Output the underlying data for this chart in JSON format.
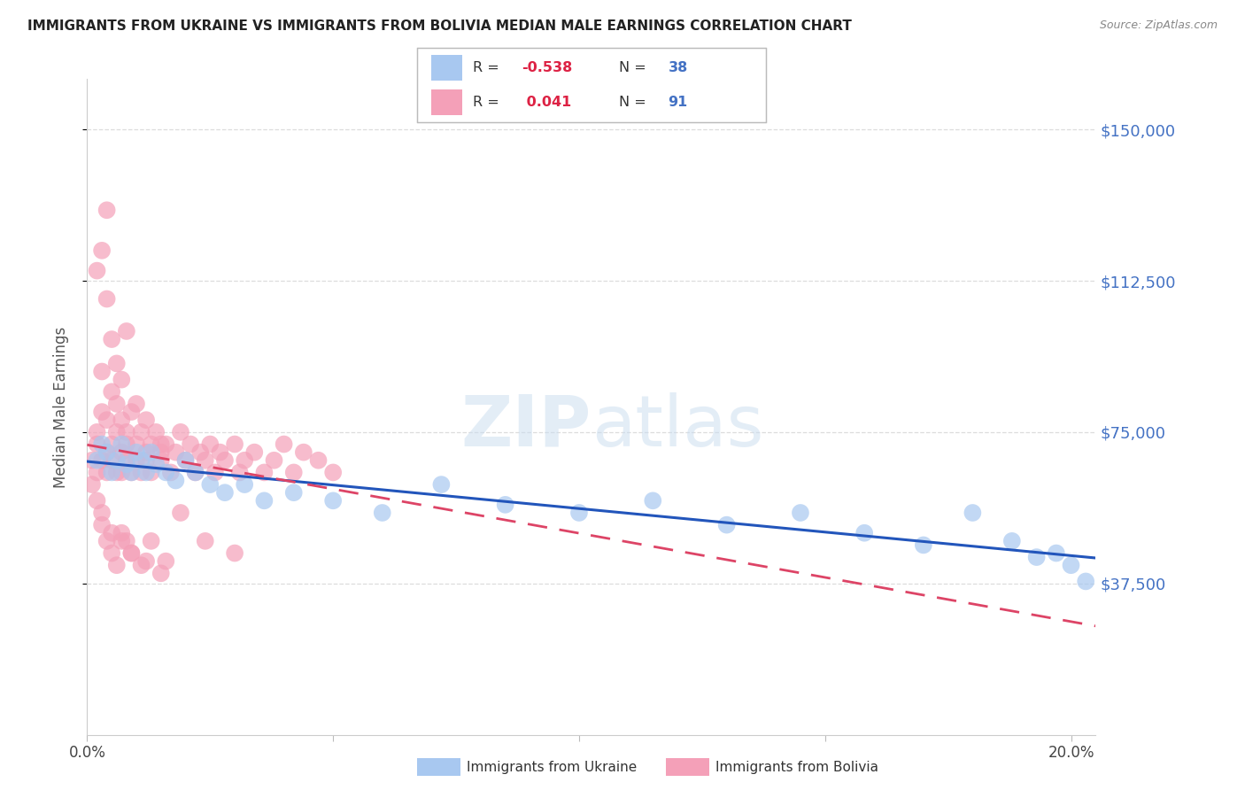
{
  "title": "IMMIGRANTS FROM UKRAINE VS IMMIGRANTS FROM BOLIVIA MEDIAN MALE EARNINGS CORRELATION CHART",
  "source": "Source: ZipAtlas.com",
  "ylabel": "Median Male Earnings",
  "ytick_labels": [
    "$150,000",
    "$112,500",
    "$75,000",
    "$37,500"
  ],
  "ytick_values": [
    150000,
    112500,
    75000,
    37500
  ],
  "ylim": [
    0,
    162500
  ],
  "xlim": [
    0.0,
    0.205
  ],
  "ukraine_R": -0.538,
  "ukraine_N": 38,
  "bolivia_R": 0.041,
  "bolivia_N": 91,
  "ukraine_color": "#A8C8F0",
  "bolivia_color": "#F4A0B8",
  "ukraine_line_color": "#2255BB",
  "bolivia_line_color": "#DD4466",
  "background_color": "#FFFFFF",
  "grid_color": "#DDDDDD",
  "title_color": "#222222",
  "axis_label_color": "#555555",
  "right_tick_color": "#4472C4",
  "ukraine_x": [
    0.002,
    0.003,
    0.004,
    0.005,
    0.006,
    0.007,
    0.008,
    0.009,
    0.01,
    0.011,
    0.012,
    0.013,
    0.014,
    0.016,
    0.018,
    0.02,
    0.022,
    0.025,
    0.028,
    0.032,
    0.036,
    0.042,
    0.05,
    0.06,
    0.072,
    0.085,
    0.1,
    0.115,
    0.13,
    0.145,
    0.158,
    0.17,
    0.18,
    0.188,
    0.193,
    0.197,
    0.2,
    0.203
  ],
  "ukraine_y": [
    68000,
    72000,
    70000,
    65000,
    68000,
    72000,
    67000,
    65000,
    70000,
    68000,
    65000,
    70000,
    67000,
    65000,
    63000,
    68000,
    65000,
    62000,
    60000,
    62000,
    58000,
    60000,
    58000,
    55000,
    62000,
    57000,
    55000,
    58000,
    52000,
    55000,
    50000,
    47000,
    55000,
    48000,
    44000,
    45000,
    42000,
    38000
  ],
  "bolivia_x": [
    0.001,
    0.001,
    0.002,
    0.002,
    0.002,
    0.003,
    0.003,
    0.003,
    0.004,
    0.004,
    0.004,
    0.005,
    0.005,
    0.005,
    0.006,
    0.006,
    0.006,
    0.007,
    0.007,
    0.007,
    0.008,
    0.008,
    0.008,
    0.009,
    0.009,
    0.01,
    0.01,
    0.011,
    0.011,
    0.012,
    0.012,
    0.013,
    0.013,
    0.014,
    0.015,
    0.015,
    0.016,
    0.017,
    0.018,
    0.019,
    0.02,
    0.021,
    0.022,
    0.023,
    0.024,
    0.025,
    0.026,
    0.027,
    0.028,
    0.03,
    0.031,
    0.032,
    0.034,
    0.036,
    0.038,
    0.04,
    0.042,
    0.044,
    0.047,
    0.05,
    0.002,
    0.003,
    0.004,
    0.005,
    0.006,
    0.007,
    0.008,
    0.01,
    0.012,
    0.015,
    0.003,
    0.004,
    0.005,
    0.006,
    0.007,
    0.008,
    0.009,
    0.011,
    0.013,
    0.016,
    0.002,
    0.003,
    0.005,
    0.007,
    0.009,
    0.012,
    0.015,
    0.019,
    0.024,
    0.03,
    0.004
  ],
  "bolivia_y": [
    62000,
    68000,
    75000,
    65000,
    72000,
    80000,
    68000,
    90000,
    70000,
    78000,
    65000,
    85000,
    72000,
    68000,
    75000,
    65000,
    82000,
    70000,
    78000,
    65000,
    72000,
    68000,
    75000,
    65000,
    80000,
    72000,
    68000,
    75000,
    65000,
    70000,
    68000,
    72000,
    65000,
    75000,
    70000,
    68000,
    72000,
    65000,
    70000,
    75000,
    68000,
    72000,
    65000,
    70000,
    68000,
    72000,
    65000,
    70000,
    68000,
    72000,
    65000,
    68000,
    70000,
    65000,
    68000,
    72000,
    65000,
    70000,
    68000,
    65000,
    115000,
    120000,
    108000,
    98000,
    92000,
    88000,
    100000,
    82000,
    78000,
    72000,
    52000,
    48000,
    45000,
    42000,
    50000,
    48000,
    45000,
    42000,
    48000,
    43000,
    58000,
    55000,
    50000,
    48000,
    45000,
    43000,
    40000,
    55000,
    48000,
    45000,
    130000
  ]
}
